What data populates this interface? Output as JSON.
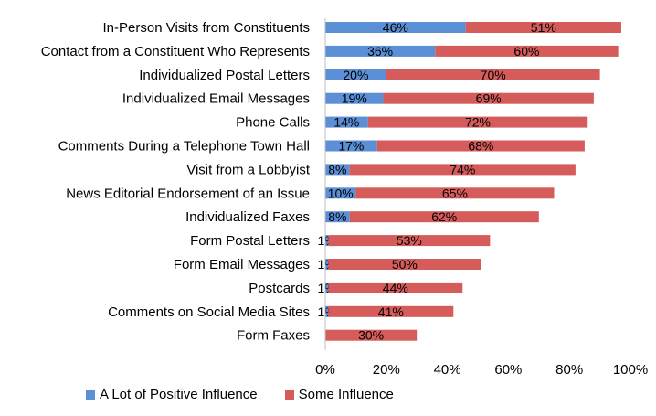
{
  "chart_data": {
    "type": "bar",
    "stacked": true,
    "orientation": "horizontal",
    "categories": [
      "In-Person Visits from Constituents",
      "Contact from a Constituent Who Represents",
      "Individualized Postal Letters",
      "Individualized Email Messages",
      "Phone Calls",
      "Comments During a Telephone Town Hall",
      "Visit from a Lobbyist",
      "News Editorial Endorsement of an Issue",
      "Individualized Faxes",
      "Form Postal Letters",
      "Form Email Messages",
      "Postcards",
      "Comments on Social Media Sites",
      "Form Faxes"
    ],
    "series": [
      {
        "name": "A Lot of Positive Influence",
        "color": "#5b8fd6",
        "values": [
          46,
          36,
          20,
          19,
          14,
          17,
          8,
          10,
          8,
          1,
          1,
          1,
          1,
          0
        ],
        "labels": [
          "46%",
          "36%",
          "20%",
          "19%",
          "14%",
          "17%",
          "8%",
          "10%",
          "8%",
          "1%",
          "1%",
          "1%",
          "1%",
          ""
        ]
      },
      {
        "name": "Some Influence",
        "color": "#d65b5b",
        "values": [
          51,
          60,
          70,
          69,
          72,
          68,
          74,
          65,
          62,
          53,
          50,
          44,
          41,
          30
        ],
        "labels": [
          "51%",
          "60%",
          "70%",
          "69%",
          "72%",
          "68%",
          "74%",
          "65%",
          "62%",
          "53%",
          "50%",
          "44%",
          "41%",
          "30%"
        ]
      }
    ],
    "xlim": [
      0,
      100
    ],
    "xticks": [
      "0%",
      "20%",
      "40%",
      "60%",
      "80%",
      "100%"
    ],
    "percent_stacked": true,
    "legend_position": "bottom",
    "grid": false
  }
}
